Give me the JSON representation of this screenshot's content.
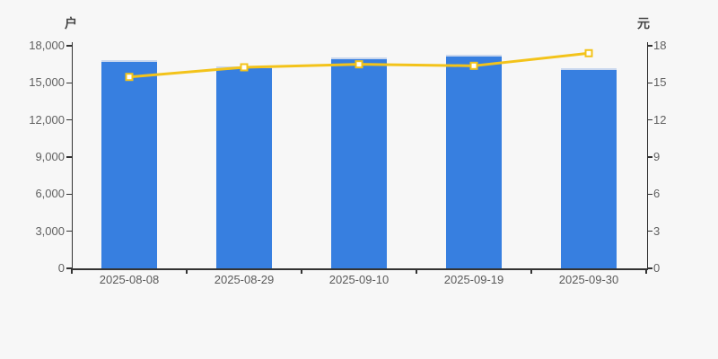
{
  "chart_data": {
    "type": "bar",
    "subtype": "bar-with-line-overlay",
    "title": "",
    "categories": [
      "2025-08-08",
      "2025-08-29",
      "2025-09-10",
      "2025-09-19",
      "2025-09-30"
    ],
    "series": [
      {
        "type": "bar",
        "axis": "left",
        "unit": "户",
        "values": [
          16820,
          16330,
          17030,
          17270,
          16190
        ]
      },
      {
        "type": "line",
        "axis": "right",
        "unit": "元",
        "values": [
          15.48,
          16.26,
          16.5,
          16.38,
          17.4
        ]
      }
    ],
    "y_left": {
      "name": "户",
      "min": 0,
      "max": 18000,
      "interval": 3000,
      "tick_labels": [
        "0",
        "3,000",
        "6,000",
        "9,000",
        "12,000",
        "15,000",
        "18,000"
      ]
    },
    "y_right": {
      "name": "元",
      "min": 0,
      "max": 18,
      "interval": 3,
      "tick_labels": [
        "0",
        "3",
        "6",
        "9",
        "12",
        "15",
        "18"
      ]
    },
    "grid_lines": false,
    "legend": false
  },
  "colors": {
    "background": "#f7f7f7",
    "bar": "#377fe0",
    "bar_cap": "#c9d7ee",
    "line": "#f3c31a",
    "marker_fill": "#ffffff",
    "axis": "#333333",
    "tick_text": "#616161",
    "axis_name_text": "#454545"
  }
}
